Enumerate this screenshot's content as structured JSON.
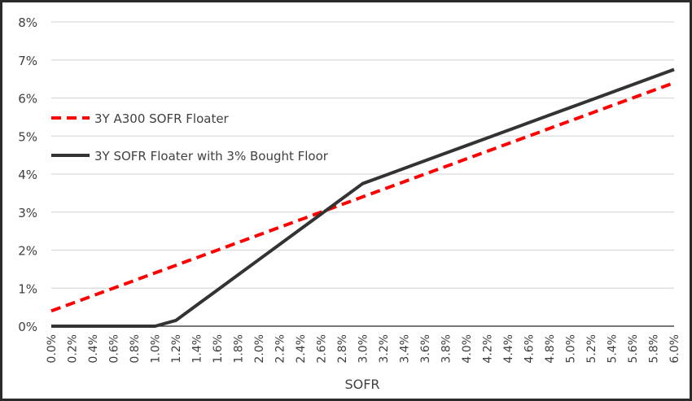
{
  "chart_data": {
    "type": "line",
    "title": "",
    "xlabel": "SOFR",
    "ylabel": "",
    "ylim": [
      0,
      8
    ],
    "xlim": [
      0.0,
      6.0
    ],
    "grid": true,
    "legend_position": "upper-left inside",
    "y_ticks": [
      "0%",
      "1%",
      "2%",
      "3%",
      "4%",
      "5%",
      "6%",
      "7%",
      "8%"
    ],
    "categories": [
      "0.0%",
      "0.2%",
      "0.4%",
      "0.6%",
      "0.8%",
      "1.0%",
      "1.2%",
      "1.4%",
      "1.6%",
      "1.8%",
      "2.0%",
      "2.2%",
      "2.4%",
      "2.6%",
      "2.8%",
      "3.0%",
      "3.2%",
      "3.4%",
      "3.6%",
      "3.8%",
      "4.0%",
      "4.2%",
      "4.4%",
      "4.6%",
      "4.8%",
      "5.0%",
      "5.2%",
      "5.4%",
      "5.6%",
      "5.8%",
      "6.0%"
    ],
    "series": [
      {
        "name": "3Y A300 SOFR Floater",
        "color": "#ff0000",
        "style": "dashed",
        "values": [
          0.4,
          0.6,
          0.8,
          1.0,
          1.2,
          1.4,
          1.6,
          1.8,
          2.0,
          2.2,
          2.4,
          2.6,
          2.8,
          3.0,
          3.2,
          3.4,
          3.6,
          3.8,
          4.0,
          4.2,
          4.4,
          4.6,
          4.8,
          5.0,
          5.2,
          5.4,
          5.6,
          5.8,
          6.0,
          6.2,
          6.4
        ]
      },
      {
        "name": "3Y SOFR Floater with 3% Bought Floor",
        "color": "#333333",
        "style": "solid",
        "values": [
          0,
          0,
          0,
          0,
          0,
          0,
          0.15,
          0.55,
          0.95,
          1.35,
          1.75,
          2.15,
          2.55,
          2.95,
          3.35,
          3.75,
          3.95,
          4.15,
          4.35,
          4.55,
          4.75,
          4.95,
          5.15,
          5.35,
          5.55,
          5.75,
          5.95,
          6.15,
          6.35,
          6.55,
          6.75
        ]
      }
    ]
  }
}
